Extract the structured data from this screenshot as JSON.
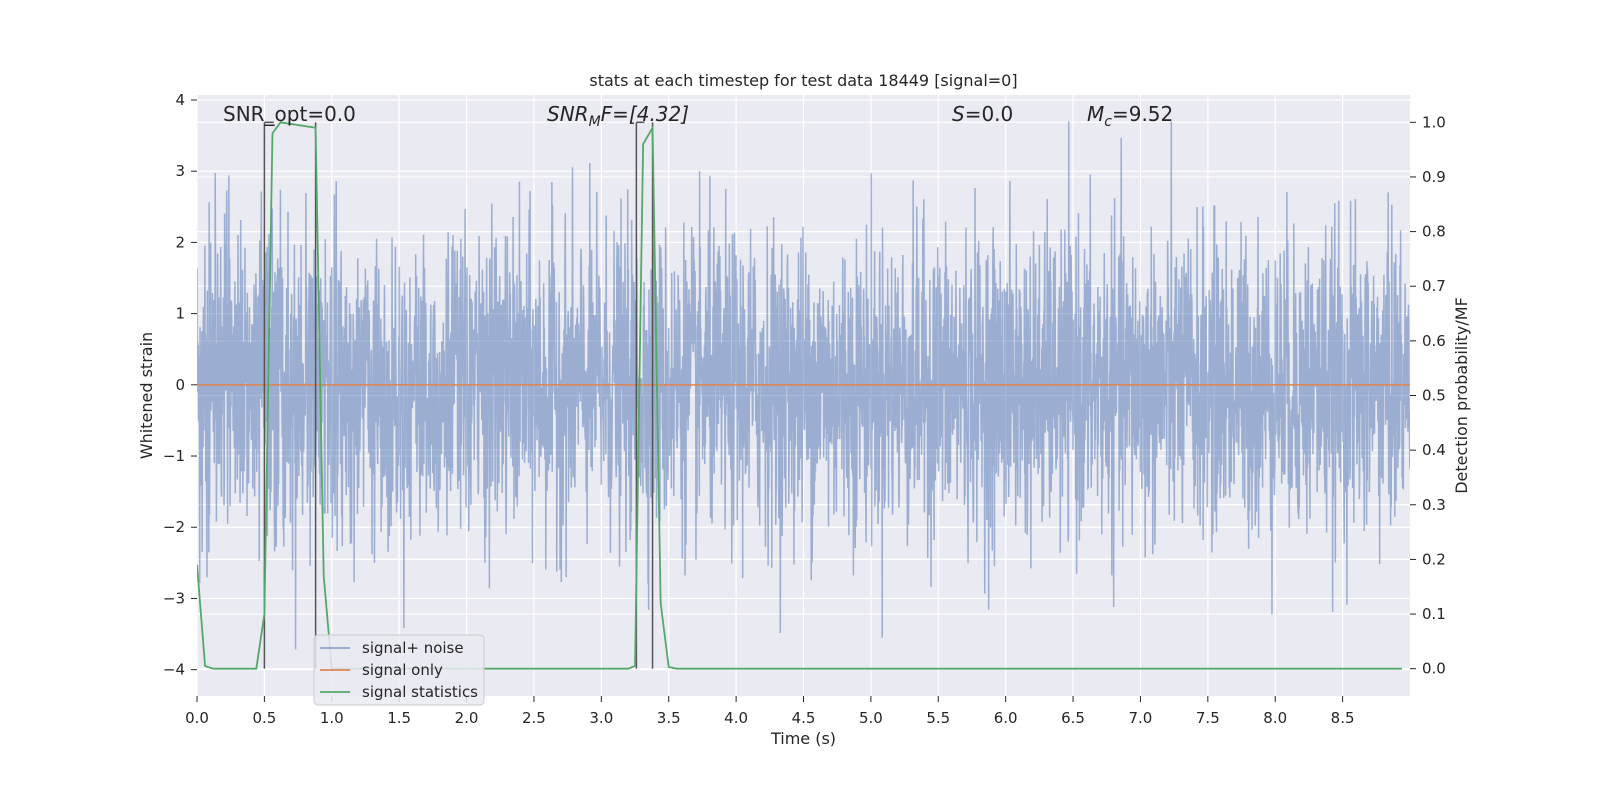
{
  "chart_data": {
    "type": "line",
    "title": "stats at each timestep for test data 18449 [signal=0]",
    "xlabel": "Time (s)",
    "ylabel_left": "Whitened strain",
    "ylabel_right": "Detection probability/MF",
    "xlim": [
      0,
      9.0
    ],
    "ylim_left": [
      -4.37,
      4.07
    ],
    "ylim_right": [
      -0.05,
      1.05
    ],
    "grid": true,
    "x_ticks": [
      "0.0",
      "0.5",
      "1.0",
      "1.5",
      "2.0",
      "2.5",
      "3.0",
      "3.5",
      "4.0",
      "4.5",
      "5.0",
      "5.5",
      "6.0",
      "6.5",
      "7.0",
      "7.5",
      "8.0",
      "8.5"
    ],
    "y_ticks_left": [
      "4",
      "3",
      "2",
      "1",
      "0",
      "−1",
      "−2",
      "−3",
      "−4"
    ],
    "y_ticks_right": [
      "1.0",
      "0.9",
      "0.8",
      "0.7",
      "0.6",
      "0.5",
      "0.4",
      "0.3",
      "0.2",
      "0.1",
      "0.0"
    ],
    "annotations": {
      "snr_opt": "SNR_opt=0.0",
      "snr_mf_main": "SNR",
      "snr_mf_sub": "M",
      "snr_mf_rest": "F=[4.32]",
      "s_main": "S",
      "s_rest": "=0.0",
      "mc_main": "M",
      "mc_sub": "c",
      "mc_rest": "=9.52"
    },
    "legend": {
      "placement": "lower-left",
      "entries": [
        "signal+ noise",
        "signal only",
        "signal statistics"
      ]
    },
    "series": [
      {
        "name": "signal+ noise",
        "axis": "left",
        "color": "#4c72b0",
        "description_values": "whitened noise, approximately Gaussian, std ~1, range about -4 to 3.7",
        "x_range": [
          0,
          9.0
        ],
        "sample_rate": 2048
      },
      {
        "name": "signal only",
        "axis": "left",
        "color": "#dd8452",
        "x": [
          0,
          9.0
        ],
        "y": [
          0,
          0
        ]
      },
      {
        "name": "signal statistics",
        "axis": "right",
        "color": "#55a868",
        "x": [
          0.0,
          0.06,
          0.12,
          0.25,
          0.44,
          0.5,
          0.56,
          0.62,
          0.88,
          0.94,
          1.0,
          1.06,
          3.0,
          3.2,
          3.25,
          3.31,
          3.38,
          3.44,
          3.5,
          3.56,
          8.94
        ],
        "y": [
          0.19,
          0.005,
          0.0,
          0.0,
          0.0,
          0.1,
          0.98,
          1.0,
          0.99,
          0.17,
          0.0,
          0.0,
          0.0,
          0.0,
          0.005,
          0.96,
          0.99,
          0.12,
          0.003,
          0.0,
          0.0
        ]
      }
    ],
    "markers": {
      "color": "#555555",
      "vertical_lines_x": [
        0.5,
        0.88,
        3.26,
        3.38
      ],
      "bracket_1": {
        "x": [
          0.5,
          0.57
        ],
        "y_right": 1.0
      },
      "bracket_2": {
        "x": [
          3.26,
          3.32
        ],
        "y_right": 1.0
      }
    },
    "colors": {
      "plot_background": "#eaeaf2",
      "grid": "#ffffff",
      "noise": "#4c72b0",
      "signal_only": "#dd8452",
      "statistics": "#55a868"
    }
  }
}
